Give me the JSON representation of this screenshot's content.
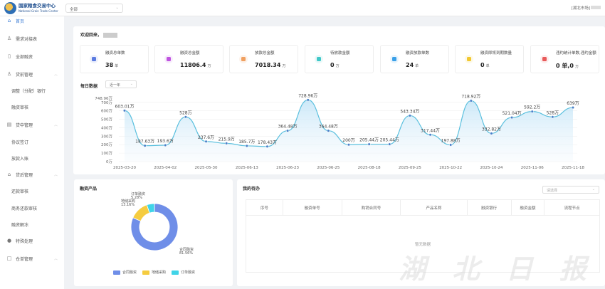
{
  "header": {
    "logo_cn": "国家粮食交易中心",
    "logo_en": "National Grain Trade Center",
    "scope": "全部",
    "user": "[湖北市场]"
  },
  "sidebar": {
    "items": [
      {
        "label": "首页",
        "icon": "home-icon",
        "active": true
      },
      {
        "label": "需求对接表",
        "icon": "user-icon"
      },
      {
        "label": "全部融资",
        "icon": "document-icon"
      },
      {
        "label": "贷前管理",
        "icon": "user-icon",
        "group": true
      },
      {
        "label": "调整（分配）银行",
        "sub": true
      },
      {
        "label": "融资审核",
        "sub": true
      },
      {
        "label": "贷中管理",
        "icon": "grid-icon",
        "group": true
      },
      {
        "label": "协议签订",
        "sub": true
      },
      {
        "label": "放款入账",
        "sub": true
      },
      {
        "label": "贷后管理",
        "icon": "bank-icon",
        "group": true
      },
      {
        "label": "还款审核",
        "sub": true
      },
      {
        "label": "商务还款审核",
        "sub": true
      },
      {
        "label": "融资解冻",
        "sub": true
      },
      {
        "label": "特殊处理",
        "icon": "pin-icon"
      },
      {
        "label": "仓单管理",
        "icon": "folder-icon",
        "group": true
      }
    ]
  },
  "welcome": {
    "title": "欢迎回来，"
  },
  "stats": [
    {
      "label": "融资总单数",
      "value": "38",
      "unit": "单",
      "color": "#5b7be0",
      "bg": "#eef1fc"
    },
    {
      "label": "融资总金额",
      "value": "11806.4",
      "unit": "万",
      "color": "#c054e0",
      "bg": "#f8eefc"
    },
    {
      "label": "放款总金额",
      "value": "7018.34",
      "unit": "万",
      "color": "#f0a060",
      "bg": "#fdf3ec"
    },
    {
      "label": "待放款金额",
      "value": "0",
      "unit": "万",
      "color": "#40c8c8",
      "bg": "#ebf9f9"
    },
    {
      "label": "融资放款单数",
      "value": "24",
      "unit": "单",
      "color": "#3aa0e8",
      "bg": "#eaf5fd"
    },
    {
      "label": "融资即将到期数量",
      "value": "0",
      "unit": "单",
      "color": "#f2c830",
      "bg": "#fdf9e8"
    },
    {
      "label": "违约统计单数,违约金额",
      "value": "0 单,0",
      "unit": "万",
      "color": "#e85a5a",
      "bg": "#fdeeee"
    }
  ],
  "daily": {
    "title": "每日数据",
    "range": "近一年"
  },
  "chart_data": [
    {
      "type": "area",
      "title": "每日数据",
      "x_tick_labels": [
        "2025-03-20",
        "2025-04-02",
        "2025-05-30",
        "2025-06-13",
        "2025-06-23",
        "2025-06-25",
        "2025-08-18",
        "2025-09-25",
        "2025-10-22",
        "2025-10-24",
        "2025-11-06",
        "2025-11-18"
      ],
      "values": [
        603.01,
        187.63,
        193.6,
        528,
        237.6,
        215.9,
        185.7,
        178.43,
        364.48,
        728.96,
        364.48,
        200,
        205.44,
        205.44,
        543.34,
        317.44,
        197.88,
        718.92,
        332.82,
        521.04,
        592.2,
        528,
        639
      ],
      "data_labels": [
        "603.01万",
        "187.63万",
        "193.6万",
        "528万",
        "237.6万",
        "215.9万",
        "185.7万",
        "178.43万",
        "364.48万",
        "728.96万",
        "364.48万",
        "200万",
        "205.44万",
        "205.44万",
        "543.34万",
        "317.44万",
        "197.88万",
        "718.92万",
        "332.82万",
        "521.04万",
        "592.2万",
        "528万",
        "639万"
      ],
      "y_tick_labels": [
        "0万",
        "100万",
        "200万",
        "300万",
        "400万",
        "500万",
        "600万",
        "700万",
        "748.96万"
      ],
      "ylim": [
        0,
        748.96
      ],
      "color": "#5bc0de",
      "grid": true
    },
    {
      "type": "pie",
      "title": "融资产品",
      "categories": [
        "合同融资",
        "地储采购",
        "订单融资"
      ],
      "values": [
        81.56,
        13.16,
        5.28
      ],
      "labels": [
        "81.56%",
        "13.16%",
        "5.28%"
      ],
      "colors": [
        "#6f8ee8",
        "#f5cc40",
        "#40d4e8"
      ],
      "legend": "bottom"
    }
  ],
  "todo": {
    "title": "我的待办",
    "select_placeholder": "请选择",
    "columns": [
      "序号",
      "融资单号",
      "购销合同号",
      "产品名称",
      "融资银行",
      "融资金额",
      "流程节点"
    ],
    "empty": "暂无数据"
  },
  "watermark": "湖北日报"
}
